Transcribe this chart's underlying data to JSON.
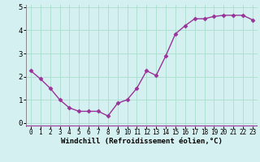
{
  "x": [
    0,
    1,
    2,
    3,
    4,
    5,
    6,
    7,
    8,
    9,
    10,
    11,
    12,
    13,
    14,
    15,
    16,
    17,
    18,
    19,
    20,
    21,
    22,
    23
  ],
  "y": [
    2.25,
    1.9,
    1.5,
    1.0,
    0.65,
    0.5,
    0.5,
    0.5,
    0.3,
    0.85,
    1.0,
    1.5,
    2.25,
    2.05,
    2.9,
    3.85,
    4.2,
    4.5,
    4.5,
    4.6,
    4.65,
    4.65,
    4.65,
    4.45
  ],
  "line_color": "#993399",
  "marker": "D",
  "markersize": 2.5,
  "linewidth": 1.0,
  "xlabel": "Windchill (Refroidissement éolien,°C)",
  "xlim": [
    -0.5,
    23.5
  ],
  "ylim": [
    -0.15,
    5.1
  ],
  "yticks": [
    0,
    1,
    2,
    3,
    4,
    5
  ],
  "xticks": [
    0,
    1,
    2,
    3,
    4,
    5,
    6,
    7,
    8,
    9,
    10,
    11,
    12,
    13,
    14,
    15,
    16,
    17,
    18,
    19,
    20,
    21,
    22,
    23
  ],
  "background_color": "#d4f0f0",
  "grid_color": "#aaddcc",
  "tick_fontsize": 5.5,
  "xlabel_fontsize": 6.5,
  "ytick_fontsize": 6.5
}
